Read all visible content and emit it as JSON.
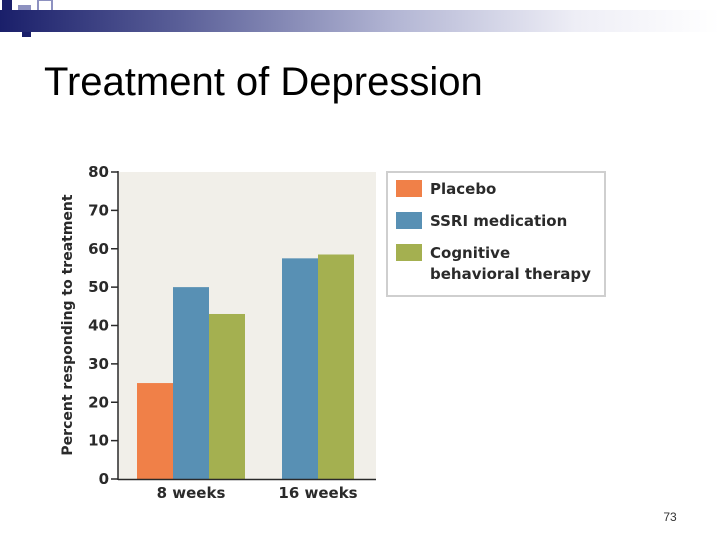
{
  "slide": {
    "title": "Treatment of Depression",
    "page_number": "73"
  },
  "colors": {
    "title_bar_dark": "#1a1f6a",
    "plot_background": "#f1efe9",
    "deco_square_dark": "#1a1f6a",
    "deco_square_light": "#8d91c0"
  },
  "chart_data": {
    "type": "bar",
    "title": "",
    "xlabel": "",
    "ylabel": "Percent responding to treatment",
    "categories": [
      "8 weeks",
      "16 weeks"
    ],
    "series": [
      {
        "name": "Placebo",
        "color": "#f08048",
        "values": [
          25,
          null
        ]
      },
      {
        "name": "SSRI medication",
        "color": "#5890b4",
        "values": [
          50,
          57.5
        ]
      },
      {
        "name": "Cognitive behavioral therapy",
        "color": "#a4b050",
        "values": [
          43,
          58.5
        ]
      }
    ],
    "ylim": [
      0,
      80
    ],
    "yticks": [
      "0",
      "10",
      "20",
      "30",
      "40",
      "50",
      "60",
      "70",
      "80"
    ],
    "grid": false,
    "legend_position": "right-top"
  }
}
